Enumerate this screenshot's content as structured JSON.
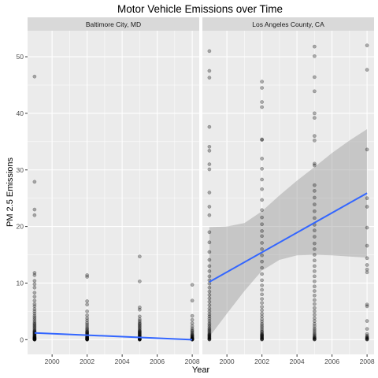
{
  "chart_data": {
    "type": "scatter",
    "title": "Motor Vehicle Emissions over Time",
    "xlabel": "Year",
    "ylabel": "PM 2.5 Emissions",
    "xlim": [
      1998.6,
      2008.4
    ],
    "ylim": [
      -2.6,
      54.6
    ],
    "x_ticks": [
      2000,
      2002,
      2004,
      2006,
      2008
    ],
    "y_ticks": [
      0,
      10,
      20,
      30,
      40,
      50
    ],
    "grid": true,
    "legend": "none",
    "colors": {
      "panel_background": "#ebebeb",
      "strip_background": "#d9d9d9",
      "grid_major": "#ffffff",
      "point": "#000000",
      "trend_line": "#3366ff",
      "confidence_band": "#999999"
    },
    "panels": [
      {
        "strip_label": "Baltimore City, MD",
        "points": [
          {
            "x": 1999,
            "y": [
              46.5,
              27.9,
              23.0,
              22.0,
              11.8,
              11.4,
              10.4,
              9.8,
              9.2,
              8.3,
              7.6,
              6.9,
              6.3,
              5.9,
              5.4,
              5.0,
              4.6,
              4.2,
              3.9,
              3.6,
              3.3,
              3.0,
              2.8,
              2.6,
              2.4,
              2.2,
              2.0,
              1.8,
              1.6,
              1.5,
              1.4,
              1.3,
              1.2,
              1.1,
              1.0,
              0.9,
              0.8,
              0.7,
              0.6,
              0.5,
              0.45,
              0.4,
              0.35,
              0.3,
              0.25,
              0.2,
              0.15,
              0.1,
              0.08,
              0.05,
              0.03,
              0.02,
              0.01
            ]
          },
          {
            "x": 2002,
            "y": [
              11.4,
              11.1,
              6.8,
              6.2,
              5.0,
              4.3,
              3.8,
              3.4,
              3.0,
              2.7,
              2.4,
              2.1,
              1.9,
              1.7,
              1.5,
              1.4,
              1.3,
              1.2,
              1.1,
              1.0,
              0.9,
              0.8,
              0.7,
              0.6,
              0.5,
              0.45,
              0.4,
              0.35,
              0.3,
              0.25,
              0.2,
              0.15,
              0.1,
              0.08,
              0.05,
              0.03,
              0.02,
              0.01
            ]
          },
          {
            "x": 2005,
            "y": [
              14.7,
              10.3,
              5.7,
              5.3,
              4.1,
              3.6,
              3.3,
              3.0,
              2.8,
              2.6,
              2.4,
              2.2,
              2.0,
              1.8,
              1.6,
              1.5,
              1.4,
              1.3,
              1.2,
              1.1,
              1.0,
              0.9,
              0.8,
              0.7,
              0.6,
              0.5,
              0.45,
              0.4,
              0.35,
              0.3,
              0.25,
              0.2,
              0.15,
              0.1,
              0.08,
              0.05,
              0.03,
              0.02,
              0.01
            ]
          },
          {
            "x": 2008,
            "y": [
              9.7,
              6.9,
              4.2,
              3.5,
              2.9,
              2.4,
              2.0,
              1.7,
              1.5,
              1.3,
              1.1,
              0.9,
              0.8,
              0.7,
              0.6,
              0.5,
              0.4,
              0.3,
              0.25,
              0.2,
              0.15,
              0.1,
              0.08,
              0.05,
              0.03,
              0.02,
              0.01
            ]
          }
        ],
        "trend": {
          "x": [
            1999,
            2008
          ],
          "y": [
            1.2,
            0.0
          ]
        },
        "confidence_band": null
      },
      {
        "strip_label": "Los Angeles County, CA",
        "points": [
          {
            "x": 1999,
            "y": [
              51.0,
              47.5,
              46.3,
              37.6,
              34.1,
              33.4,
              31.0,
              30.1,
              26.0,
              23.5,
              22.0,
              19.0,
              17.2,
              15.5,
              14.1,
              13.0,
              12.1,
              11.2,
              10.5,
              9.9,
              9.2,
              8.5,
              7.9,
              7.3,
              6.7,
              6.1,
              5.5,
              5.0,
              4.5,
              4.1,
              3.7,
              3.3,
              2.9,
              2.6,
              2.3,
              2.0,
              1.8,
              1.6,
              1.4,
              1.2,
              1.0,
              0.9,
              0.8,
              0.7,
              0.6,
              0.5,
              0.4,
              0.3,
              0.2,
              0.1,
              0.05,
              0.02
            ]
          },
          {
            "x": 2002,
            "y": [
              45.6,
              44.5,
              42.0,
              41.1,
              35.4,
              35.3,
              32.0,
              30.2,
              28.3,
              26.6,
              24.7,
              22.9,
              21.6,
              20.4,
              19.2,
              18.3,
              17.1,
              16.0,
              14.9,
              13.8,
              12.7,
              11.6,
              10.5,
              9.6,
              8.8,
              8.0,
              7.2,
              6.5,
              5.8,
              5.2,
              4.6,
              4.1,
              3.6,
              3.2,
              2.8,
              2.5,
              2.2,
              1.9,
              1.6,
              1.4,
              1.2,
              1.0,
              0.9,
              0.8,
              0.7,
              0.6,
              0.5,
              0.4,
              0.3,
              0.2,
              0.1,
              0.05,
              0.02
            ]
          },
          {
            "x": 2005,
            "y": [
              51.8,
              50.1,
              46.4,
              43.9,
              40.0,
              39.2,
              36.0,
              35.2,
              31.1,
              30.8,
              27.3,
              26.3,
              25.1,
              23.9,
              22.7,
              21.5,
              20.3,
              19.3,
              18.2,
              17.0,
              16.0,
              15.0,
              14.0,
              13.0,
              12.1,
              11.2,
              10.3,
              9.4,
              8.6,
              7.8,
              7.0,
              6.3,
              5.6,
              5.0,
              4.4,
              3.8,
              3.3,
              2.8,
              2.4,
              2.0,
              1.7,
              1.4,
              1.1,
              0.9,
              0.7,
              0.5,
              0.4,
              0.3,
              0.2,
              0.1,
              0.05,
              0.02
            ]
          },
          {
            "x": 2008,
            "y": [
              52.0,
              47.7,
              33.6,
              25.0,
              23.5,
              19.8,
              16.6,
              14.4,
              13.2,
              12.4,
              11.9,
              6.2,
              5.9,
              3.3,
              1.9,
              1.0,
              0.7,
              0.5,
              0.4,
              0.3,
              0.2,
              0.1,
              0.05,
              0.02
            ]
          }
        ],
        "trend": {
          "x": [
            1999,
            2008
          ],
          "y": [
            10.2,
            25.9
          ]
        },
        "confidence_band": {
          "x": [
            1999,
            2000,
            2001,
            2002,
            2003,
            2004,
            2005,
            2006,
            2007,
            2008
          ],
          "lower": [
            0.5,
            4.6,
            8.6,
            12.2,
            14.1,
            14.9,
            15.0,
            14.9,
            14.7,
            14.5
          ],
          "upper": [
            19.9,
            20.0,
            20.6,
            22.7,
            25.5,
            28.1,
            30.5,
            33.0,
            35.2,
            37.2
          ]
        }
      }
    ]
  }
}
